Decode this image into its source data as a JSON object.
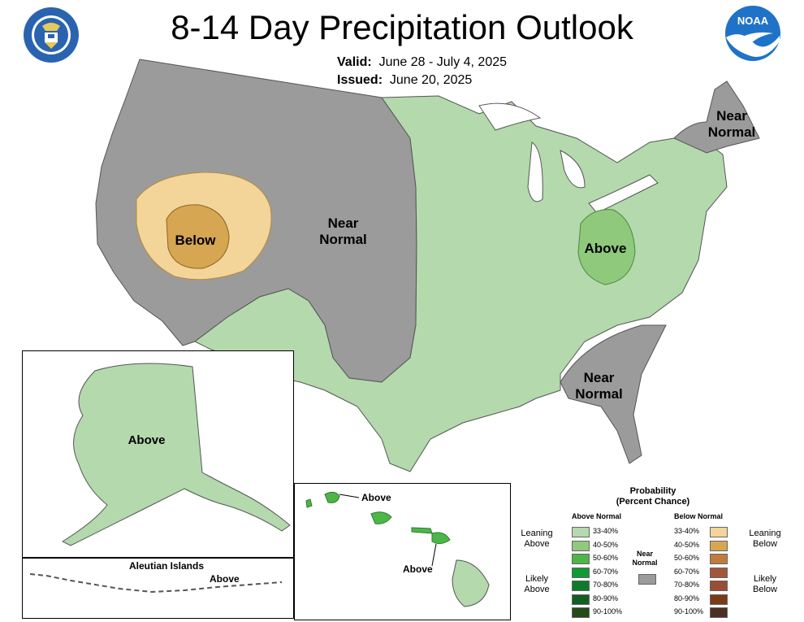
{
  "header": {
    "title": "8-14 Day Precipitation Outlook",
    "valid_label": "Valid:",
    "valid_value": "June 28 - July 4, 2025",
    "issued_label": "Issued:",
    "issued_value": "June 20, 2025"
  },
  "logos": {
    "left": "department-of-commerce-seal",
    "right": "noaa-logo",
    "noaa_text": "NOAA"
  },
  "colors": {
    "near_normal": "#9b9b9b",
    "above_33_40": "#b3d9ad",
    "above_40_50": "#8ec97c",
    "below_33_40": "#f3d59a",
    "below_40_50": "#d7a653",
    "water": "#ffffff",
    "borders": "#707070"
  },
  "map_labels": {
    "west": "Near\nNormal",
    "below": "Below",
    "ohio": "Above",
    "northeast": "Near\nNormal",
    "southeast": "Near\nNormal",
    "alaska": "Above",
    "aleutians_title": "Aleutian Islands",
    "aleutians": "Above",
    "hawaii_north": "Above",
    "hawaii_south": "Above"
  },
  "legend": {
    "title_line1": "Probability",
    "title_line2": "(Percent Chance)",
    "above_header": "Above Normal",
    "below_header": "Below Normal",
    "near_label_line1": "Near",
    "near_label_line2": "Normal",
    "leaning_above_1": "Leaning",
    "leaning_above_2": "Above",
    "likely_above_1": "Likely",
    "likely_above_2": "Above",
    "leaning_below_1": "Leaning",
    "leaning_below_2": "Below",
    "likely_below_1": "Likely",
    "likely_below_2": "Below",
    "above_bins": [
      {
        "label": "33-40%",
        "color": "#b3d9ad"
      },
      {
        "label": "40-50%",
        "color": "#8ec97c"
      },
      {
        "label": "50-60%",
        "color": "#4cb748"
      },
      {
        "label": "60-70%",
        "color": "#0f9a33"
      },
      {
        "label": "70-80%",
        "color": "#0e7a2a"
      },
      {
        "label": "80-90%",
        "color": "#125e22"
      },
      {
        "label": "90-100%",
        "color": "#244a17"
      }
    ],
    "below_bins": [
      {
        "label": "33-40%",
        "color": "#f3d59a"
      },
      {
        "label": "40-50%",
        "color": "#d7a653"
      },
      {
        "label": "50-60%",
        "color": "#c27b3e"
      },
      {
        "label": "60-70%",
        "color": "#a4553a"
      },
      {
        "label": "70-80%",
        "color": "#9a4c34"
      },
      {
        "label": "80-90%",
        "color": "#7c3b18"
      },
      {
        "label": "90-100%",
        "color": "#4d2e23"
      }
    ],
    "near_color": "#9b9b9b"
  }
}
